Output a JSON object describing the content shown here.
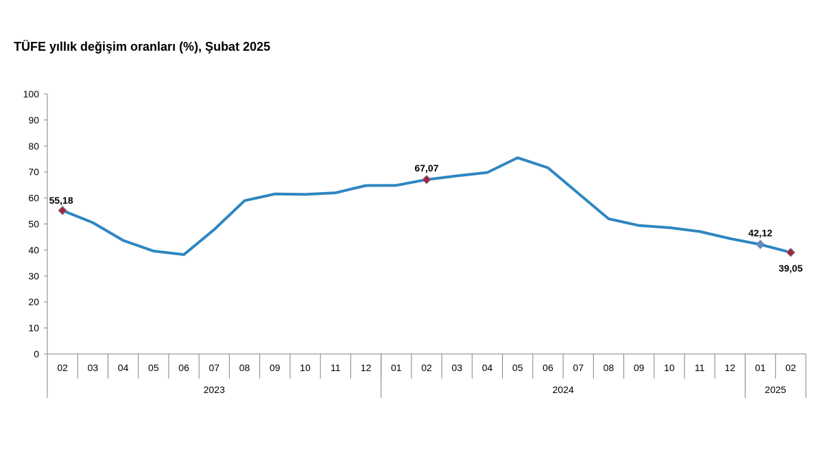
{
  "chart_data": {
    "type": "line",
    "title": "TÜFE yıllık değişim oranları (%), Şubat 2025",
    "xlabel": "",
    "ylabel": "",
    "ylim": [
      0,
      100
    ],
    "yticks": [
      "0",
      "10",
      "20",
      "30",
      "40",
      "50",
      "60",
      "70",
      "80",
      "90",
      "100"
    ],
    "categories": [
      "02",
      "03",
      "04",
      "05",
      "06",
      "07",
      "08",
      "09",
      "10",
      "11",
      "12",
      "01",
      "02",
      "03",
      "04",
      "05",
      "06",
      "07",
      "08",
      "09",
      "10",
      "11",
      "12",
      "01",
      "02"
    ],
    "year_groups": [
      {
        "label": "2023",
        "start": 0,
        "end": 10
      },
      {
        "label": "2024",
        "start": 11,
        "end": 22
      },
      {
        "label": "2025",
        "start": 23,
        "end": 24
      }
    ],
    "series": [
      {
        "color": "#2e86c1",
        "values": [
          55.18,
          50.51,
          43.68,
          39.59,
          38.21,
          47.83,
          58.94,
          61.53,
          61.36,
          61.98,
          64.77,
          64.86,
          67.07,
          68.5,
          69.8,
          75.45,
          71.6,
          61.78,
          51.97,
          49.38,
          48.58,
          47.09,
          44.38,
          42.12,
          39.05
        ]
      }
    ],
    "labeled_points": [
      {
        "index": 0,
        "label": "55,18",
        "marker_color": "#a32639"
      },
      {
        "index": 12,
        "label": "67,07",
        "marker_color": "#a32639"
      },
      {
        "index": 23,
        "label": "42,12",
        "marker_color": "#5b8fc9"
      },
      {
        "index": 24,
        "label": "39,05",
        "marker_color": "#a32639"
      }
    ],
    "grid": false,
    "legend": "none"
  }
}
